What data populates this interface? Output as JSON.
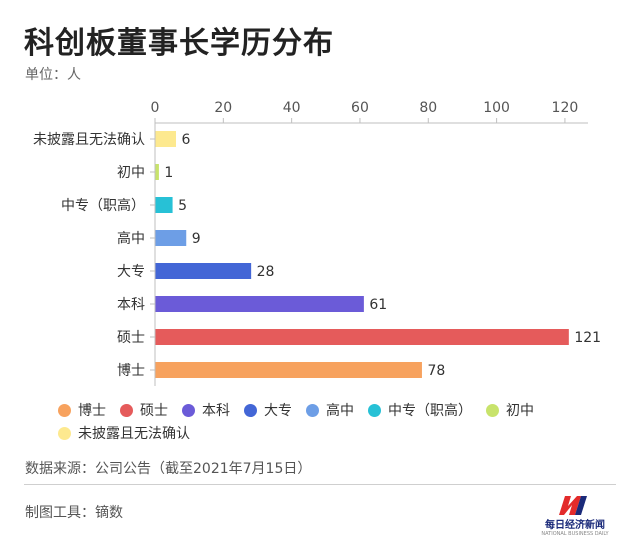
{
  "header": {
    "title": "科创板董事长学历分布",
    "unit": "单位：人"
  },
  "chart_data": {
    "type": "bar",
    "orientation": "horizontal",
    "categories": [
      "未披露且无法确认",
      "初中",
      "中专（职高）",
      "高中",
      "大专",
      "本科",
      "硕士",
      "博士"
    ],
    "values": [
      6,
      1,
      5,
      9,
      28,
      61,
      121,
      78
    ],
    "colors": [
      "#fde98f",
      "#c8e36b",
      "#27c1d6",
      "#6d9ee6",
      "#4366d6",
      "#6b5bd8",
      "#e55b5b",
      "#f7a25e"
    ],
    "xlim": [
      0,
      125
    ],
    "xticks": [
      0,
      20,
      40,
      60,
      80,
      100,
      120
    ],
    "axis_position": "top",
    "legend": [
      "博士",
      "硕士",
      "本科",
      "大专",
      "高中",
      "中专（职高）",
      "初中",
      "未披露且无法确认"
    ],
    "legend_colors": [
      "#f7a25e",
      "#e55b5b",
      "#6b5bd8",
      "#4366d6",
      "#6d9ee6",
      "#27c1d6",
      "#c8e36b",
      "#fde98f"
    ],
    "legend_position": "bottom"
  },
  "footer": {
    "source": "数据来源：公司公告（截至2021年7月15日）",
    "tool": "制图工具：镝数",
    "logo_name": "每日经济新闻",
    "logo_sub": "NATIONAL BUSINESS DAILY",
    "logo_color_red": "#e32b2b",
    "logo_color_blue": "#1a2a7a"
  }
}
